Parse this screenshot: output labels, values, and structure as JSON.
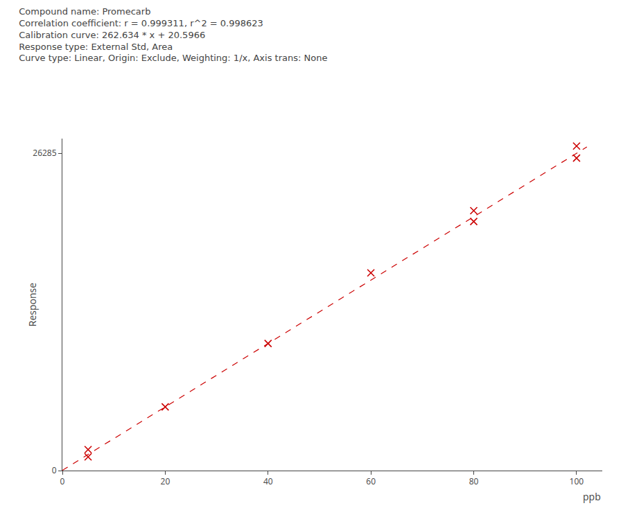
{
  "chart_data": {
    "type": "scatter",
    "title": "Compound name: Promecarb\nCorrelation coefficient: r = 0.999311, r^2 = 0.998623\nCalibration curve: 262.634 * x + 20.5966\nResponse type: External Std, Area\nCurve type: Linear, Origin: Exclude, Weighting: 1/x, Axis trans: None",
    "xlabel": "ppb",
    "ylabel": "Response",
    "series": [
      {
        "type": "line",
        "color": "#cc0000",
        "line_style": "dashed",
        "x": [
          0,
          102
        ],
        "values": [
          20.5966,
          26809.2646
        ]
      },
      {
        "type": "scatter",
        "color": "#cc0000",
        "marker": "x",
        "x": [
          5,
          5,
          20,
          40,
          60,
          80,
          80,
          100,
          100
        ],
        "values": [
          1733.7666,
          1133.7666,
          5273.2766,
          10525.9566,
          16378.6366,
          21531.3166,
          20631.3166,
          26883.9966,
          25883.9966
        ]
      }
    ],
    "xlim": [
      0,
      105
    ],
    "ylim": [
      0,
      27500
    ],
    "xticks": [
      0,
      20,
      40,
      60,
      80,
      100
    ],
    "yticks": [
      0,
      26285
    ],
    "grid": false
  }
}
